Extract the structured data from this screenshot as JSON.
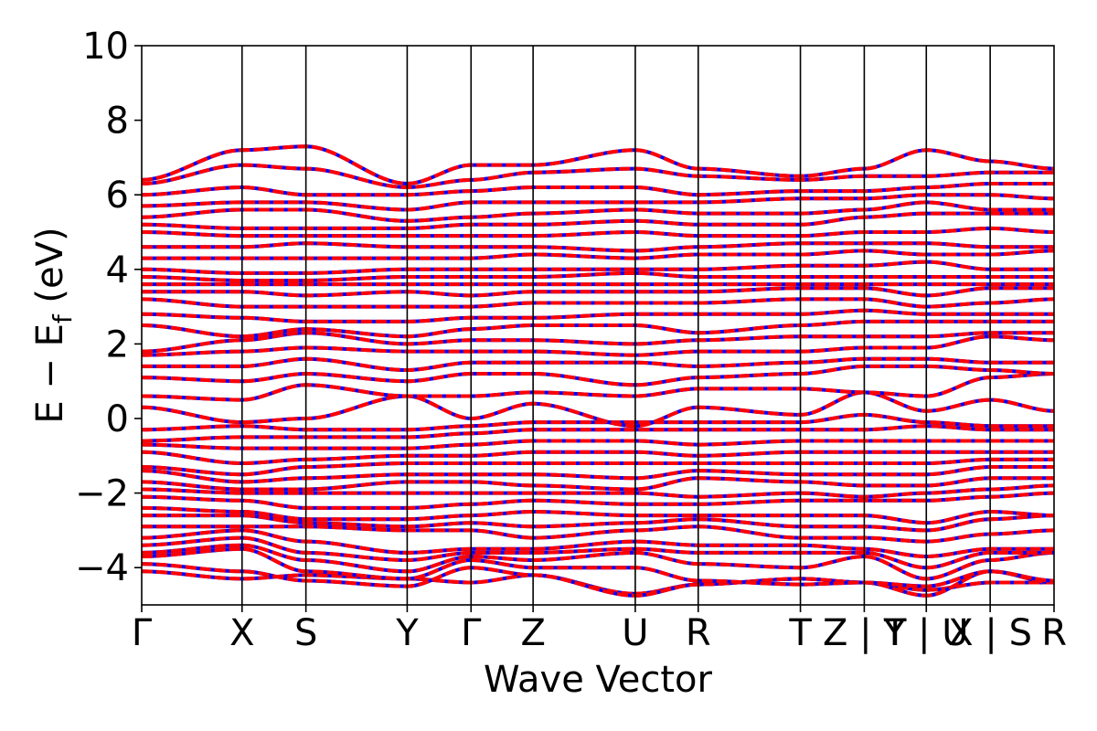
{
  "chart_data": {
    "type": "line",
    "xlabel": "Wave Vector",
    "ylabel": "E − E",
    "ylabel_sub": "f",
    "ylabel_unit": " (eV)",
    "ylim": [
      -5,
      10
    ],
    "yticks": [
      "−4",
      "−2",
      "0",
      "2",
      "4",
      "6",
      "8",
      "10"
    ],
    "ytick_values": [
      -4,
      -2,
      0,
      2,
      4,
      6,
      8,
      10
    ],
    "kpath": [
      {
        "label": "Γ",
        "x": 0.0
      },
      {
        "label": "X",
        "x": 1.1
      },
      {
        "label": "S",
        "x": 1.8
      },
      {
        "label": "Y",
        "x": 2.91
      },
      {
        "label": "Γ",
        "x": 3.61
      },
      {
        "label": "Z",
        "x": 4.29
      },
      {
        "label": "U",
        "x": 5.41
      },
      {
        "label": "R",
        "x": 6.1
      },
      {
        "label": "T",
        "x": 7.22
      },
      {
        "label": "Z | Y",
        "x": 7.92
      },
      {
        "label": "T | U",
        "x": 8.6
      },
      {
        "label": "X | S",
        "x": 9.3
      },
      {
        "label": "R",
        "x": 10.0
      }
    ],
    "grid": false,
    "series": [
      {
        "color": "#0000ff",
        "style": "solid"
      },
      {
        "color": "#ff0000",
        "style": "dashed"
      }
    ],
    "bands": [
      [
        -4.1,
        -4.3,
        -4.2,
        -4.3,
        -4.4,
        -4.2,
        -4.7,
        -4.45,
        -4.3,
        -4.4,
        -4.6,
        -4.4,
        -4.4
      ],
      [
        -3.9,
        -4.1,
        -4.35,
        -4.5,
        -4.0,
        -4.2,
        -4.75,
        -4.45,
        -4.3,
        -4.4,
        -4.75,
        -4.1,
        -4.4
      ],
      [
        -3.7,
        -3.5,
        -4.1,
        -4.3,
        -3.8,
        -4.0,
        -4.0,
        -4.35,
        -4.45,
        -4.4,
        -4.5,
        -4.1,
        -4.35
      ],
      [
        -3.6,
        -3.4,
        -3.8,
        -4.1,
        -3.7,
        -3.8,
        -3.6,
        -3.9,
        -4.0,
        -3.7,
        -4.3,
        -3.8,
        -3.6
      ],
      [
        -3.4,
        -3.2,
        -3.6,
        -3.8,
        -3.6,
        -3.6,
        -3.5,
        -3.6,
        -3.6,
        -3.6,
        -4.0,
        -3.6,
        -3.6
      ],
      [
        -3.2,
        -3.0,
        -3.3,
        -3.6,
        -3.5,
        -3.5,
        -3.3,
        -3.4,
        -3.4,
        -3.5,
        -3.7,
        -3.5,
        -3.5
      ],
      [
        -2.9,
        -2.9,
        -2.9,
        -3.0,
        -3.0,
        -3.2,
        -3.0,
        -2.9,
        -3.2,
        -3.2,
        -3.3,
        -3.1,
        -3.0
      ],
      [
        -2.6,
        -2.6,
        -2.8,
        -2.9,
        -2.8,
        -2.9,
        -2.8,
        -2.7,
        -2.9,
        -2.9,
        -3.0,
        -2.7,
        -2.6
      ],
      [
        -2.4,
        -2.5,
        -2.7,
        -2.7,
        -2.6,
        -2.5,
        -2.6,
        -2.6,
        -2.6,
        -2.6,
        -2.8,
        -2.5,
        -2.6
      ],
      [
        -2.1,
        -2.2,
        -2.4,
        -2.4,
        -2.3,
        -2.2,
        -2.3,
        -2.3,
        -2.2,
        -2.2,
        -2.2,
        -2.1,
        -2.0
      ],
      [
        -1.9,
        -2.0,
        -2.0,
        -2.0,
        -2.0,
        -2.0,
        -2.0,
        -2.1,
        -2.0,
        -2.1,
        -2.0,
        -1.9,
        -1.8
      ],
      [
        -1.7,
        -1.9,
        -1.9,
        -1.7,
        -1.7,
        -1.8,
        -1.9,
        -1.6,
        -1.7,
        -1.8,
        -1.8,
        -1.6,
        -1.6
      ],
      [
        -1.4,
        -1.7,
        -1.6,
        -1.5,
        -1.5,
        -1.5,
        -1.6,
        -1.4,
        -1.5,
        -1.5,
        -1.5,
        -1.3,
        -1.3
      ],
      [
        -1.3,
        -1.5,
        -1.3,
        -1.2,
        -1.2,
        -1.2,
        -1.2,
        -1.2,
        -1.2,
        -1.2,
        -1.2,
        -1.1,
        -1.1
      ],
      [
        -0.9,
        -1.2,
        -1.1,
        -1.0,
        -1.0,
        -0.9,
        -0.9,
        -1.0,
        -0.9,
        -0.9,
        -0.9,
        -0.9,
        -0.9
      ],
      [
        -0.7,
        -0.8,
        -0.8,
        -0.8,
        -0.7,
        -0.6,
        -0.6,
        -0.7,
        -0.6,
        -0.6,
        -0.6,
        -0.6,
        -0.6
      ],
      [
        -0.6,
        -0.5,
        -0.5,
        -0.5,
        -0.4,
        -0.3,
        -0.3,
        -0.3,
        -0.3,
        -0.3,
        -0.2,
        -0.3,
        -0.3
      ],
      [
        -0.3,
        -0.2,
        -0.3,
        -0.3,
        -0.2,
        -0.1,
        -0.1,
        -0.1,
        -0.1,
        0.1,
        -0.1,
        -0.2,
        -0.2
      ],
      [
        0.3,
        -0.1,
        0.0,
        0.6,
        0.0,
        0.4,
        -0.2,
        0.3,
        0.1,
        0.7,
        0.2,
        0.5,
        0.2
      ],
      [
        0.6,
        0.5,
        0.9,
        0.6,
        0.6,
        0.7,
        0.6,
        0.8,
        0.8,
        0.7,
        0.6,
        1.1,
        1.2
      ],
      [
        1.1,
        1.0,
        1.2,
        1.0,
        1.2,
        1.2,
        0.9,
        1.1,
        1.2,
        1.4,
        1.4,
        1.3,
        1.2
      ],
      [
        1.4,
        1.4,
        1.6,
        1.3,
        1.5,
        1.5,
        1.5,
        1.4,
        1.5,
        1.6,
        1.6,
        1.5,
        1.5
      ],
      [
        1.7,
        1.8,
        1.9,
        1.8,
        1.8,
        1.8,
        1.7,
        1.8,
        1.8,
        1.9,
        1.9,
        2.2,
        2.1
      ],
      [
        1.8,
        2.1,
        2.3,
        2.0,
        2.1,
        2.1,
        2.0,
        2.1,
        2.2,
        2.2,
        2.2,
        2.3,
        2.3
      ],
      [
        2.5,
        2.2,
        2.4,
        2.2,
        2.4,
        2.5,
        2.5,
        2.3,
        2.5,
        2.6,
        2.6,
        2.6,
        2.6
      ],
      [
        2.8,
        2.7,
        2.6,
        2.6,
        2.7,
        2.7,
        2.8,
        2.8,
        2.8,
        2.9,
        2.8,
        2.8,
        2.8
      ],
      [
        3.2,
        3.0,
        3.0,
        3.0,
        3.0,
        3.1,
        3.1,
        3.1,
        3.2,
        3.2,
        3.0,
        3.1,
        3.2
      ],
      [
        3.4,
        3.4,
        3.3,
        3.4,
        3.3,
        3.4,
        3.4,
        3.4,
        3.5,
        3.5,
        3.3,
        3.5,
        3.5
      ],
      [
        3.6,
        3.6,
        3.6,
        3.6,
        3.6,
        3.6,
        3.6,
        3.6,
        3.6,
        3.6,
        3.6,
        3.6,
        3.6
      ],
      [
        3.8,
        3.7,
        3.7,
        3.8,
        3.8,
        3.8,
        3.9,
        3.8,
        3.8,
        3.8,
        3.8,
        3.8,
        3.8
      ],
      [
        4.0,
        3.9,
        3.9,
        4.0,
        4.0,
        4.0,
        4.0,
        4.0,
        4.1,
        4.1,
        4.2,
        4.0,
        4.0
      ],
      [
        4.3,
        4.3,
        4.3,
        4.3,
        4.3,
        4.4,
        4.3,
        4.4,
        4.4,
        4.5,
        4.4,
        4.4,
        4.5
      ],
      [
        4.6,
        4.6,
        4.7,
        4.6,
        4.6,
        4.6,
        4.5,
        4.6,
        4.7,
        4.7,
        4.7,
        4.6,
        4.6
      ],
      [
        5.0,
        4.9,
        4.9,
        4.9,
        4.9,
        4.9,
        5.0,
        4.9,
        4.9,
        5.0,
        5.0,
        5.1,
        5.0
      ],
      [
        5.2,
        5.1,
        5.1,
        5.1,
        5.2,
        5.2,
        5.3,
        5.2,
        5.2,
        5.4,
        5.5,
        5.5,
        5.5
      ],
      [
        5.4,
        5.6,
        5.6,
        5.3,
        5.4,
        5.5,
        5.6,
        5.5,
        5.5,
        5.6,
        5.8,
        5.6,
        5.6
      ],
      [
        5.7,
        5.8,
        5.8,
        5.6,
        5.8,
        5.8,
        5.8,
        5.8,
        5.9,
        5.9,
        6.0,
        6.0,
        5.9
      ],
      [
        6.0,
        6.2,
        6.0,
        6.0,
        6.1,
        6.2,
        6.2,
        6.0,
        6.1,
        6.1,
        6.2,
        6.3,
        6.3
      ],
      [
        6.3,
        6.8,
        6.7,
        6.2,
        6.4,
        6.6,
        6.7,
        6.5,
        6.4,
        6.5,
        6.5,
        6.6,
        6.6
      ],
      [
        6.4,
        7.2,
        7.3,
        6.3,
        6.8,
        6.8,
        7.2,
        6.7,
        6.5,
        6.7,
        7.2,
        6.9,
        6.7
      ]
    ]
  }
}
